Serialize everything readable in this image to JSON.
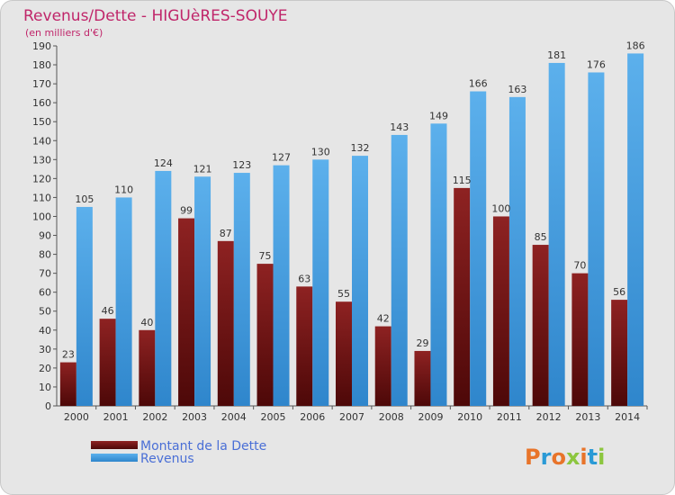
{
  "chart_data": {
    "type": "bar",
    "title": "Revenus/Dette - HIGUèRES-SOUYE",
    "subtitle": "(en milliers d'€)",
    "categories": [
      "2000",
      "2001",
      "2002",
      "2003",
      "2004",
      "2005",
      "2006",
      "2007",
      "2008",
      "2009",
      "2010",
      "2011",
      "2012",
      "2013",
      "2014"
    ],
    "series": [
      {
        "name": "Montant de la Dette",
        "color": "#7a1a1a",
        "values": [
          23,
          46,
          40,
          99,
          87,
          75,
          63,
          55,
          42,
          29,
          115,
          100,
          85,
          70,
          56
        ]
      },
      {
        "name": "Revenus",
        "color": "#4aa3e6",
        "values": [
          105,
          110,
          124,
          121,
          123,
          127,
          130,
          132,
          143,
          149,
          166,
          163,
          181,
          176,
          186
        ]
      }
    ],
    "ylim": [
      0,
      190
    ],
    "ytick_step": 10,
    "grid": false,
    "legend_position": "bottom-left"
  },
  "logo": {
    "text": "Proxiti",
    "colors": [
      "#e8742a",
      "#2a9ad6",
      "#e8742a",
      "#8cc63f",
      "#e8742a",
      "#2a9ad6",
      "#8cc63f"
    ]
  }
}
